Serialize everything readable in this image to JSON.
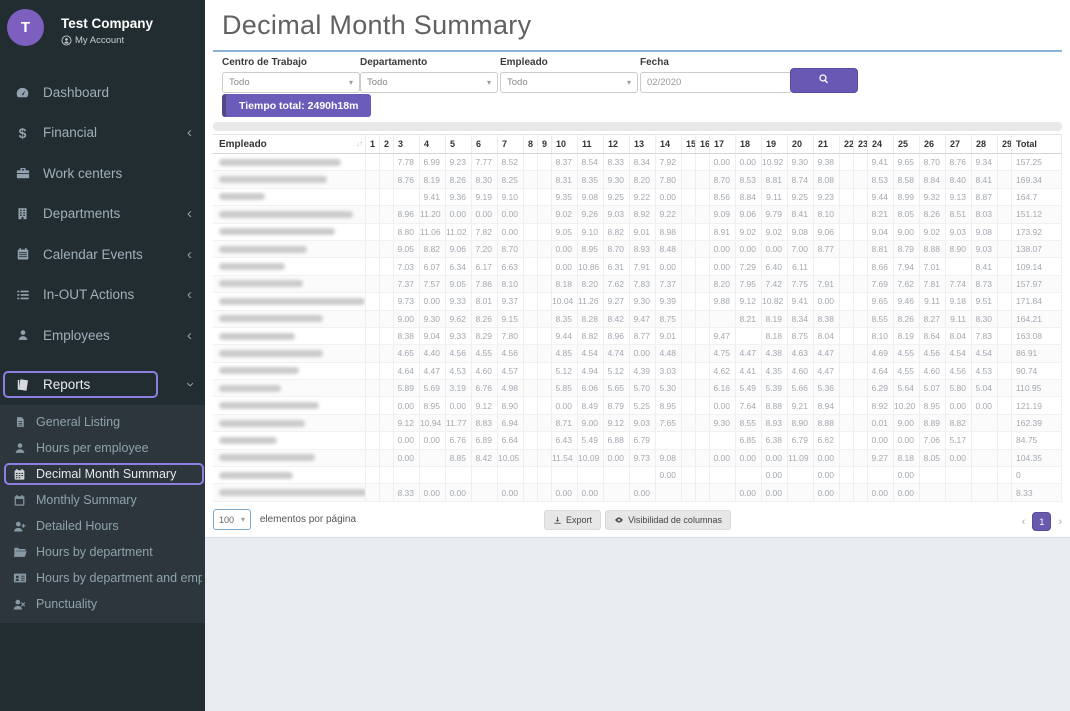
{
  "colors": {
    "accent_purple": "#6a5aad",
    "highlight_outline": "#8d7ee0",
    "sidebar_bg": "#222d32",
    "submenu_bg": "#2c363c",
    "title_rule_blue": "#8cb3d9",
    "avatar_purple": "#7d5fc0"
  },
  "sidebar": {
    "avatar_letter": "T",
    "company": "Test Company",
    "account": "My Account",
    "items": [
      {
        "label": "Dashboard",
        "icon": "gauge-icon",
        "chevron": ""
      },
      {
        "label": "Financial",
        "icon": "dollar-icon",
        "chevron": "left"
      },
      {
        "label": "Work centers",
        "icon": "briefcase-icon",
        "chevron": ""
      },
      {
        "label": "Departments",
        "icon": "building-icon",
        "chevron": "left"
      },
      {
        "label": "Calendar Events",
        "icon": "calendar-icon",
        "chevron": "left"
      },
      {
        "label": "In-OUT Actions",
        "icon": "list-icon",
        "chevron": "left"
      },
      {
        "label": "Employees",
        "icon": "user-icon",
        "chevron": "left"
      },
      {
        "label": "Reports",
        "icon": "book-icon",
        "chevron": "down",
        "active": true
      }
    ],
    "subitems": [
      {
        "label": "General Listing",
        "icon": "file-text-icon"
      },
      {
        "label": "Hours per employee",
        "icon": "user-icon"
      },
      {
        "label": "Decimal Month Summary",
        "icon": "calendar-grid-icon",
        "active": true
      },
      {
        "label": "Monthly Summary",
        "icon": "calendar-blank-icon"
      },
      {
        "label": "Detailed Hours",
        "icon": "user-plus-icon"
      },
      {
        "label": "Hours by department",
        "icon": "folder-open-icon"
      },
      {
        "label": "Hours by department and employee",
        "icon": "id-card-icon"
      },
      {
        "label": "Punctuality",
        "icon": "user-x-icon"
      }
    ]
  },
  "header": {
    "title": "Decimal Month Summary"
  },
  "filters": {
    "centro": {
      "label": "Centro de Trabajo",
      "value": "Todo"
    },
    "departamento": {
      "label": "Departamento",
      "value": "Todo"
    },
    "empleado": {
      "label": "Empleado",
      "value": "Todo"
    },
    "fecha": {
      "label": "Fecha",
      "value": "02/2020"
    }
  },
  "summary": {
    "tiempo_total": "Tiempo total: 2490h18m"
  },
  "table": {
    "name_header": "Empleado",
    "total_header": "Total",
    "day_headers": [
      "1",
      "2",
      "3",
      "4",
      "5",
      "6",
      "7",
      "8",
      "9",
      "10",
      "11",
      "12",
      "13",
      "14",
      "15",
      "16",
      "17",
      "18",
      "19",
      "20",
      "21",
      "22",
      "23",
      "24",
      "25",
      "26",
      "27",
      "28",
      "29"
    ],
    "weekend_days": [
      1,
      2,
      8,
      9,
      15,
      16,
      22,
      23,
      29
    ],
    "rows": [
      {
        "name_width": 122,
        "days": {
          "3": "7.78",
          "4": "6.99",
          "5": "9.23",
          "6": "7.77",
          "7": "8.52",
          "10": "8.37",
          "11": "8.54",
          "12": "8.33",
          "13": "8.34",
          "14": "7.92",
          "17": "0.00",
          "18": "0.00",
          "19": "10.92",
          "20": "9.30",
          "21": "9.38",
          "24": "9.41",
          "25": "9.65",
          "26": "8.70",
          "27": "8.76",
          "28": "9.34"
        },
        "total": "157.25"
      },
      {
        "name_width": 108,
        "days": {
          "3": "8.76",
          "4": "8.19",
          "5": "8.26",
          "6": "8.30",
          "7": "8.25",
          "10": "8.31",
          "11": "8.35",
          "12": "9.30",
          "13": "8.20",
          "14": "7.80",
          "17": "8.70",
          "18": "8.53",
          "19": "8.81",
          "20": "8.74",
          "21": "8.08",
          "24": "8.53",
          "25": "8.58",
          "26": "8.84",
          "27": "8.40",
          "28": "8.41"
        },
        "total": "169.34"
      },
      {
        "name_width": 46,
        "days": {
          "4": "9.41",
          "5": "9.36",
          "6": "9.19",
          "7": "9.10",
          "10": "9.35",
          "11": "9.08",
          "12": "9.25",
          "13": "9.22",
          "14": "0.00",
          "17": "8.56",
          "18": "8.84",
          "19": "9.11",
          "20": "9.25",
          "21": "9.23",
          "24": "9.44",
          "25": "8.99",
          "26": "9.32",
          "27": "9.13",
          "28": "8.87"
        },
        "total": "164.7"
      },
      {
        "name_width": 134,
        "days": {
          "3": "8.96",
          "4": "11.20",
          "5": "0.00",
          "6": "0.00",
          "7": "0.00",
          "10": "9.02",
          "11": "9.26",
          "12": "9.03",
          "13": "8.92",
          "14": "9.22",
          "17": "9.09",
          "18": "9.06",
          "19": "9.79",
          "20": "8.41",
          "21": "8.10",
          "24": "8.21",
          "25": "8.05",
          "26": "8.26",
          "27": "8.51",
          "28": "8.03"
        },
        "total": "151.12"
      },
      {
        "name_width": 116,
        "days": {
          "3": "8.80",
          "4": "11.06",
          "5": "11.02",
          "6": "7.82",
          "7": "0.00",
          "10": "9.05",
          "11": "9.10",
          "12": "8.82",
          "13": "9.01",
          "14": "8.98",
          "17": "8.91",
          "18": "9.02",
          "19": "9.02",
          "20": "9.08",
          "21": "9.06",
          "24": "9.04",
          "25": "9.00",
          "26": "9.02",
          "27": "9.03",
          "28": "9.08"
        },
        "total": "173.92"
      },
      {
        "name_width": 88,
        "days": {
          "3": "9.05",
          "4": "8.82",
          "5": "9.06",
          "6": "7.20",
          "7": "8.70",
          "10": "0.00",
          "11": "8.95",
          "12": "8.70",
          "13": "8.93",
          "14": "8.48",
          "17": "0.00",
          "18": "0.00",
          "19": "0.00",
          "20": "7.00",
          "21": "8.77",
          "24": "8.81",
          "25": "8.79",
          "26": "8.88",
          "27": "8.90",
          "28": "9.03"
        },
        "total": "138.07"
      },
      {
        "name_width": 66,
        "days": {
          "3": "7.03",
          "4": "6.07",
          "5": "6.34",
          "6": "6.17",
          "7": "6.63",
          "10": "0.00",
          "11": "10.86",
          "12": "6.31",
          "13": "7.91",
          "14": "0.00",
          "17": "0.00",
          "18": "7.29",
          "19": "6.40",
          "20": "6.11",
          "24": "8.66",
          "25": "7.94",
          "26": "7.01",
          "28": "8.41"
        },
        "total": "109.14"
      },
      {
        "name_width": 84,
        "days": {
          "3": "7.37",
          "4": "7.57",
          "5": "9.05",
          "6": "7.86",
          "7": "8.10",
          "10": "8.18",
          "11": "8.20",
          "12": "7.62",
          "13": "7.83",
          "14": "7.37",
          "17": "8.20",
          "18": "7.95",
          "19": "7.42",
          "20": "7.75",
          "21": "7.91",
          "24": "7.69",
          "25": "7.62",
          "26": "7.81",
          "27": "7.74",
          "28": "8.73"
        },
        "total": "157.97"
      },
      {
        "name_width": 146,
        "days": {
          "3": "9.73",
          "4": "0.00",
          "5": "9.33",
          "6": "8.01",
          "7": "9.37",
          "10": "10.04",
          "11": "11.26",
          "12": "9.27",
          "13": "9.30",
          "14": "9.39",
          "17": "9.88",
          "18": "9.12",
          "19": "10.82",
          "20": "9.41",
          "21": "0.00",
          "24": "9.65",
          "25": "9.46",
          "26": "9.11",
          "27": "9.18",
          "28": "9.51"
        },
        "total": "171.84"
      },
      {
        "name_width": 104,
        "days": {
          "3": "9.00",
          "4": "9.30",
          "5": "9.62",
          "6": "8.26",
          "7": "9.15",
          "10": "8.35",
          "11": "8.28",
          "12": "8.42",
          "13": "9.47",
          "14": "8.75",
          "18": "8.21",
          "19": "8.19",
          "20": "8.34",
          "21": "8.38",
          "24": "8.55",
          "25": "8.26",
          "26": "8.27",
          "27": "9.11",
          "28": "8.30"
        },
        "total": "164.21"
      },
      {
        "name_width": 76,
        "days": {
          "3": "8.38",
          "4": "9.04",
          "5": "9.33",
          "6": "8.29",
          "7": "7.80",
          "10": "9.44",
          "11": "8.82",
          "12": "8.96",
          "13": "8.77",
          "14": "9.01",
          "17": "9.47",
          "19": "8.18",
          "20": "8.75",
          "21": "8.04",
          "24": "8.10",
          "25": "8.19",
          "26": "8.64",
          "27": "8.04",
          "28": "7.83"
        },
        "total": "163.08"
      },
      {
        "name_width": 104,
        "days": {
          "3": "4.65",
          "4": "4.40",
          "5": "4.56",
          "6": "4.55",
          "7": "4.56",
          "10": "4.85",
          "11": "4.54",
          "12": "4.74",
          "13": "0.00",
          "14": "4.48",
          "17": "4.75",
          "18": "4.47",
          "19": "4.38",
          "20": "4.63",
          "21": "4.47",
          "24": "4.69",
          "25": "4.55",
          "26": "4.56",
          "27": "4.54",
          "28": "4.54"
        },
        "total": "86.91"
      },
      {
        "name_width": 80,
        "days": {
          "3": "4.64",
          "4": "4.47",
          "5": "4.53",
          "6": "4.60",
          "7": "4.57",
          "10": "5.12",
          "11": "4.94",
          "12": "5.12",
          "13": "4.39",
          "14": "3.03",
          "17": "4.62",
          "18": "4.41",
          "19": "4.35",
          "20": "4.60",
          "21": "4.47",
          "24": "4.64",
          "25": "4.55",
          "26": "4.60",
          "27": "4.56",
          "28": "4.53"
        },
        "total": "90.74"
      },
      {
        "name_width": 62,
        "days": {
          "3": "5.89",
          "4": "5.69",
          "5": "3.19",
          "6": "6.76",
          "7": "4.98",
          "10": "5.85",
          "11": "6.06",
          "12": "5.65",
          "13": "5.70",
          "14": "5.30",
          "17": "6.16",
          "18": "5.49",
          "19": "5.39",
          "20": "5.66",
          "21": "5.36",
          "24": "6.29",
          "25": "5.64",
          "26": "5.07",
          "27": "5.80",
          "28": "5.04"
        },
        "total": "110.95"
      },
      {
        "name_width": 100,
        "days": {
          "3": "0.00",
          "4": "8.95",
          "5": "0.00",
          "6": "9.12",
          "7": "8.90",
          "10": "0.00",
          "11": "8.49",
          "12": "8.79",
          "13": "5.25",
          "14": "8.95",
          "17": "0.00",
          "18": "7.64",
          "19": "8.88",
          "20": "9.21",
          "21": "8.94",
          "24": "8.92",
          "25": "10.20",
          "26": "8.95",
          "27": "0.00",
          "28": "0.00"
        },
        "total": "121.19"
      },
      {
        "name_width": 86,
        "days": {
          "3": "9.12",
          "4": "10.94",
          "5": "11.77",
          "6": "8.83",
          "7": "6.94",
          "10": "8.71",
          "11": "9.00",
          "12": "9.12",
          "13": "9.03",
          "14": "7.65",
          "17": "9.30",
          "18": "8.55",
          "19": "8.93",
          "20": "8.90",
          "21": "8.88",
          "24": "0.01",
          "25": "9.00",
          "26": "8.89",
          "27": "8.82"
        },
        "total": "162.39"
      },
      {
        "name_width": 58,
        "days": {
          "3": "0.00",
          "4": "0.00",
          "5": "6.76",
          "6": "6.89",
          "7": "6.64",
          "10": "6.43",
          "11": "5.49",
          "12": "6.88",
          "13": "6.79",
          "18": "6.85",
          "19": "6.38",
          "20": "6.79",
          "21": "6.62",
          "24": "0.00",
          "25": "0.00",
          "26": "7.06",
          "27": "5.17"
        },
        "total": "84.75"
      },
      {
        "name_width": 96,
        "days": {
          "3": "0.00",
          "5": "8.85",
          "6": "8.42",
          "7": "10.05",
          "10": "11.54",
          "11": "10.09",
          "12": "0.00",
          "13": "9.73",
          "14": "9.08",
          "17": "0.00",
          "18": "0.00",
          "19": "0.00",
          "20": "11.09",
          "21": "0.00",
          "24": "9.27",
          "25": "8.18",
          "26": "8.05",
          "27": "0.00"
        },
        "total": "104.35"
      },
      {
        "name_width": 74,
        "days": {
          "14": "0.00",
          "19": "0.00",
          "21": "0.00",
          "25": "0.00"
        },
        "total": "0"
      },
      {
        "name_width": 148,
        "days": {
          "3": "8.33",
          "4": "0.00",
          "5": "0.00",
          "7": "0.00",
          "10": "0.00",
          "11": "0.00",
          "13": "0.00",
          "18": "0.00",
          "19": "0.00",
          "21": "0.00",
          "24": "0.00",
          "25": "0.00"
        },
        "total": "8.33"
      }
    ]
  },
  "footer": {
    "page_size": "100",
    "per_page_label": "elementos por página",
    "export_label": "Export",
    "columns_label": "Visibilidad de columnas",
    "pagination": {
      "prev": "‹",
      "page": "1",
      "next": "›"
    }
  }
}
